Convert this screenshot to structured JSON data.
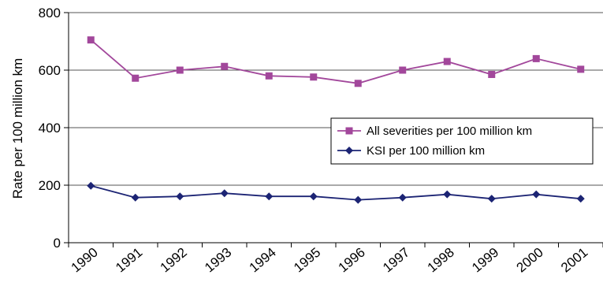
{
  "chart_data": {
    "type": "line",
    "title": "",
    "xlabel": "",
    "ylabel": "Rate per 100 million km",
    "ylim": [
      0,
      800
    ],
    "yticks": [
      0,
      200,
      400,
      600,
      800
    ],
    "grid": "horizontal",
    "legend_position": "right-middle",
    "categories": [
      "1990",
      "1991",
      "1992",
      "1993",
      "1994",
      "1995",
      "1996",
      "1997",
      "1998",
      "1999",
      "2000",
      "2001"
    ],
    "series": [
      {
        "name": "All severities per 100 million km",
        "color": "#a2479b",
        "marker": "square",
        "values": [
          705,
          572,
          600,
          613,
          580,
          576,
          554,
          600,
          630,
          585,
          640,
          603
        ]
      },
      {
        "name": "KSI per 100 million km",
        "color": "#1c2474",
        "marker": "diamond",
        "values": [
          198,
          157,
          161,
          172,
          161,
          161,
          149,
          157,
          168,
          153,
          168,
          153
        ]
      }
    ]
  }
}
